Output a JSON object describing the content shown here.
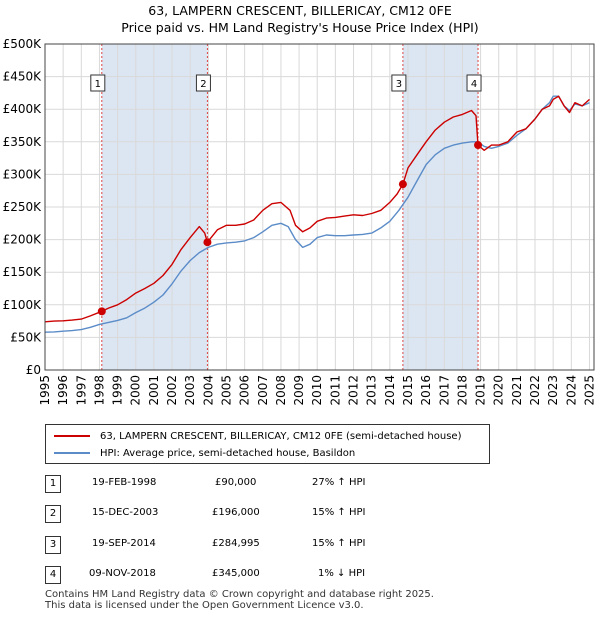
{
  "title_line1": "63, LAMPERN CRESCENT, BILLERICAY, CM12 0FE",
  "title_line2": "Price paid vs. HM Land Registry's House Price Index (HPI)",
  "colors": {
    "price": "#cc0000",
    "hpi": "#5b8cc8",
    "shade": "#dce6f2",
    "marker_line": "#dd4444"
  },
  "chart_data": {
    "type": "line",
    "title": "63, LAMPERN CRESCENT, BILLERICAY, CM12 0FE",
    "subtitle": "Price paid vs. HM Land Registry's House Price Index (HPI)",
    "xlabel": "",
    "ylabel": "",
    "xlim": [
      1995,
      2025.25
    ],
    "ylim": [
      0,
      500000
    ],
    "x_ticks": [
      1995,
      1996,
      1997,
      1998,
      1999,
      2000,
      2001,
      2002,
      2003,
      2004,
      2005,
      2006,
      2007,
      2008,
      2009,
      2010,
      2011,
      2012,
      2013,
      2014,
      2015,
      2016,
      2017,
      2018,
      2019,
      2020,
      2021,
      2022,
      2023,
      2024,
      2025
    ],
    "y_ticks": [
      {
        "value": 0,
        "label": "£0"
      },
      {
        "value": 50000,
        "label": "£50K"
      },
      {
        "value": 100000,
        "label": "£100K"
      },
      {
        "value": 150000,
        "label": "£150K"
      },
      {
        "value": 200000,
        "label": "£200K"
      },
      {
        "value": 250000,
        "label": "£250K"
      },
      {
        "value": 300000,
        "label": "£300K"
      },
      {
        "value": 350000,
        "label": "£350K"
      },
      {
        "value": 400000,
        "label": "£400K"
      },
      {
        "value": 450000,
        "label": "£450K"
      },
      {
        "value": 500000,
        "label": "£500K"
      }
    ],
    "grid": true,
    "series": [
      {
        "name": "63, LAMPERN CRESCENT, BILLERICAY, CM12 0FE (semi-detached house)",
        "x": [
          1995.0,
          1995.5,
          1996.0,
          1996.5,
          1997.0,
          1997.5,
          1998.13,
          1998.5,
          1999.0,
          1999.5,
          2000.0,
          2000.5,
          2001.0,
          2001.5,
          2002.0,
          2002.5,
          2003.0,
          2003.5,
          2003.8,
          2003.95,
          2004.5,
          2005.0,
          2005.5,
          2006.0,
          2006.5,
          2007.0,
          2007.5,
          2008.0,
          2008.5,
          2008.8,
          2009.2,
          2009.6,
          2010.0,
          2010.5,
          2011.0,
          2011.5,
          2012.0,
          2012.5,
          2013.0,
          2013.5,
          2014.0,
          2014.4,
          2014.72,
          2015.0,
          2015.5,
          2016.0,
          2016.5,
          2017.0,
          2017.5,
          2018.0,
          2018.5,
          2018.75,
          2018.86,
          2019.2,
          2019.6,
          2020.0,
          2020.5,
          2021.0,
          2021.5,
          2022.0,
          2022.4,
          2022.8,
          2023.0,
          2023.3,
          2023.6,
          2023.9,
          2024.2,
          2024.6,
          2025.0
        ],
        "values": [
          74000,
          75000,
          75500,
          76500,
          78000,
          83000,
          90000,
          95000,
          100000,
          108000,
          118000,
          125000,
          133000,
          145000,
          162000,
          185000,
          203000,
          220000,
          210000,
          196000,
          215000,
          222000,
          222000,
          224000,
          230000,
          245000,
          255000,
          257000,
          245000,
          222000,
          212000,
          218000,
          228000,
          233000,
          234000,
          236000,
          238000,
          237000,
          240000,
          245000,
          257000,
          270000,
          284995,
          310000,
          330000,
          350000,
          368000,
          380000,
          388000,
          392000,
          398000,
          390000,
          345000,
          337000,
          345000,
          345000,
          350000,
          365000,
          370000,
          385000,
          400000,
          405000,
          415000,
          420000,
          405000,
          395000,
          410000,
          405000,
          415000
        ]
      },
      {
        "name": "HPI: Average price, semi-detached house, Basildon",
        "x": [
          1995.0,
          1995.5,
          1996.0,
          1996.5,
          1997.0,
          1997.5,
          1998.0,
          1998.5,
          1999.0,
          1999.5,
          2000.0,
          2000.5,
          2001.0,
          2001.5,
          2002.0,
          2002.5,
          2003.0,
          2003.5,
          2004.0,
          2004.5,
          2005.0,
          2005.5,
          2006.0,
          2006.5,
          2007.0,
          2007.5,
          2008.0,
          2008.4,
          2008.8,
          2009.2,
          2009.6,
          2010.0,
          2010.5,
          2011.0,
          2011.5,
          2012.0,
          2012.5,
          2013.0,
          2013.5,
          2014.0,
          2014.5,
          2015.0,
          2015.5,
          2016.0,
          2016.5,
          2017.0,
          2017.5,
          2018.0,
          2018.5,
          2018.86,
          2019.2,
          2019.6,
          2020.0,
          2020.5,
          2021.0,
          2021.5,
          2022.0,
          2022.4,
          2022.8,
          2023.0,
          2023.3,
          2023.6,
          2023.9,
          2024.2,
          2024.6,
          2025.0
        ],
        "values": [
          58000,
          58500,
          59500,
          60500,
          62000,
          65500,
          70000,
          73000,
          76000,
          80000,
          88000,
          95000,
          104000,
          115000,
          132000,
          152000,
          168000,
          180000,
          188000,
          193000,
          195000,
          196000,
          198000,
          203000,
          212000,
          222000,
          225000,
          220000,
          200000,
          188000,
          193000,
          203000,
          207000,
          206000,
          206000,
          207000,
          208000,
          210000,
          218000,
          228000,
          245000,
          265000,
          290000,
          315000,
          330000,
          340000,
          345000,
          348000,
          350000,
          350000,
          343000,
          340000,
          343000,
          348000,
          360000,
          370000,
          385000,
          400000,
          410000,
          420000,
          420000,
          405000,
          398000,
          408000,
          405000,
          410000
        ]
      }
    ],
    "sales": [
      {
        "label": "1",
        "x": 1998.13,
        "price": 90000
      },
      {
        "label": "2",
        "x": 2003.95,
        "price": 196000
      },
      {
        "label": "3",
        "x": 2014.72,
        "price": 284995
      },
      {
        "label": "4",
        "x": 2018.86,
        "price": 345000
      }
    ],
    "shaded_ranges": [
      [
        1998.13,
        2003.95
      ],
      [
        2014.72,
        2018.86
      ]
    ]
  },
  "legend": {
    "price_label": "63, LAMPERN CRESCENT, BILLERICAY, CM12 0FE (semi-detached house)",
    "hpi_label": "HPI: Average price, semi-detached house, Basildon"
  },
  "transactions": [
    {
      "num": "1",
      "date": "19-FEB-1998",
      "price": "£90,000",
      "hpi": "27% ↑ HPI"
    },
    {
      "num": "2",
      "date": "15-DEC-2003",
      "price": "£196,000",
      "hpi": "15% ↑ HPI"
    },
    {
      "num": "3",
      "date": "19-SEP-2014",
      "price": "£284,995",
      "hpi": "15% ↑ HPI"
    },
    {
      "num": "4",
      "date": "09-NOV-2018",
      "price": "£345,000",
      "hpi": "1% ↓ HPI"
    }
  ],
  "footer": {
    "line1": "Contains HM Land Registry data © Crown copyright and database right 2025.",
    "line2": "This data is licensed under the Open Government Licence v3.0."
  }
}
